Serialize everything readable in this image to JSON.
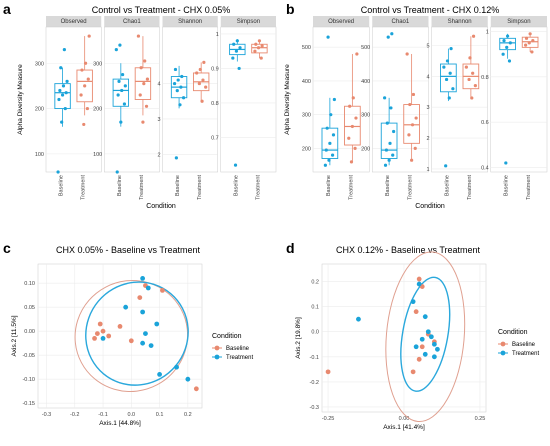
{
  "colors": {
    "baseline": "#e8896f",
    "treatment": "#1aa3d9",
    "baseline_ellipse": "#e0a090",
    "treatment_ellipse": "#2aa8dc",
    "strip_bg": "#d9d9d9",
    "grid": "#ececec"
  },
  "chart_data": [
    {
      "panel": "a",
      "type": "box",
      "title": "Control vs Treatment - CHX 0.05%",
      "xlabel": "Condition",
      "ylabel": "Alpha Diversity Measure",
      "categories": [
        "Baseline",
        "Treatment"
      ],
      "facets": [
        {
          "name": "Observed",
          "ylim": [
            60,
            380
          ],
          "ticks": [
            100,
            200,
            300
          ],
          "baseline": {
            "q1": 200,
            "median": 235,
            "q3": 255,
            "min": 160,
            "max": 290,
            "points": [
              60,
              170,
              200,
              220,
              230,
              235,
              240,
              250,
              260,
              290,
              330
            ]
          },
          "treatment": {
            "q1": 215,
            "median": 260,
            "q3": 285,
            "min": 185,
            "max": 360,
            "points": [
              165,
              200,
              230,
              250,
              265,
              285,
              300,
              360
            ]
          }
        },
        {
          "name": "Chao1",
          "ylim": [
            60,
            380
          ],
          "ticks": [
            100,
            200,
            300
          ],
          "baseline": {
            "q1": 205,
            "median": 240,
            "q3": 265,
            "min": 160,
            "max": 300,
            "points": [
              60,
              170,
              210,
              230,
              240,
              250,
              260,
              275,
              330,
              340
            ]
          },
          "treatment": {
            "q1": 220,
            "median": 260,
            "q3": 290,
            "min": 185,
            "max": 360,
            "points": [
              170,
              205,
              230,
              255,
              265,
              290,
              305,
              360
            ]
          }
        },
        {
          "name": "Shannon",
          "ylim": [
            1.5,
            5.6
          ],
          "ticks": [
            2,
            3,
            4
          ],
          "baseline": {
            "q1": 3.6,
            "median": 3.9,
            "q3": 4.2,
            "min": 3.3,
            "max": 4.5,
            "points": [
              1.9,
              3.4,
              3.6,
              3.8,
              3.9,
              4.0,
              4.1,
              4.2,
              4.4
            ]
          },
          "treatment": {
            "q1": 3.8,
            "median": 4.05,
            "q3": 4.3,
            "min": 3.5,
            "max": 4.6,
            "points": [
              3.5,
              3.9,
              4.0,
              4.1,
              4.3,
              4.4,
              4.6
            ]
          }
        },
        {
          "name": "Simpson",
          "ylim": [
            0.6,
            1.02
          ],
          "ticks": [
            0.7,
            0.8,
            0.9,
            1.0
          ],
          "baseline": {
            "q1": 0.94,
            "median": 0.955,
            "q3": 0.97,
            "min": 0.92,
            "max": 0.985,
            "points": [
              0.62,
              0.9,
              0.93,
              0.95,
              0.96,
              0.97,
              0.98
            ]
          },
          "treatment": {
            "q1": 0.945,
            "median": 0.96,
            "q3": 0.97,
            "min": 0.93,
            "max": 0.98,
            "points": [
              0.93,
              0.95,
              0.96,
              0.965,
              0.97,
              0.98
            ]
          }
        }
      ]
    },
    {
      "panel": "b",
      "type": "box",
      "title": "Control vs Treatment - CHX 0.12%",
      "xlabel": "Condition",
      "ylabel": "Alpha Diversity Measure",
      "categories": [
        "Baseline",
        "Treatment"
      ],
      "facets": [
        {
          "name": "Observed",
          "ylim": [
            130,
            560
          ],
          "ticks": [
            200,
            300,
            400,
            500
          ],
          "baseline": {
            "q1": 170,
            "median": 195,
            "q3": 260,
            "min": 150,
            "max": 350,
            "points": [
              150,
              165,
              180,
              195,
              215,
              240,
              260,
              300,
              345,
              530
            ]
          },
          "treatment": {
            "q1": 210,
            "median": 265,
            "q3": 325,
            "min": 160,
            "max": 480,
            "points": [
              160,
              200,
              230,
              265,
              290,
              325,
              350,
              480
            ]
          }
        },
        {
          "name": "Chao1",
          "ylim": [
            130,
            560
          ],
          "ticks": [
            200,
            300,
            400,
            500
          ],
          "baseline": {
            "q1": 170,
            "median": 195,
            "q3": 275,
            "min": 150,
            "max": 350,
            "points": [
              150,
              165,
              180,
              195,
              215,
              250,
              275,
              320,
              350,
              530,
              540
            ]
          },
          "treatment": {
            "q1": 215,
            "median": 270,
            "q3": 330,
            "min": 165,
            "max": 480,
            "points": [
              165,
              200,
              240,
              270,
              290,
              330,
              360,
              480
            ]
          }
        },
        {
          "name": "Shannon",
          "ylim": [
            0.9,
            5.6
          ],
          "ticks": [
            1,
            2,
            3,
            4,
            5
          ],
          "baseline": {
            "q1": 3.5,
            "median": 4.0,
            "q3": 4.4,
            "min": 3.2,
            "max": 4.9,
            "points": [
              1.1,
              3.3,
              3.6,
              3.9,
              4.1,
              4.3,
              4.5,
              4.9
            ]
          },
          "treatment": {
            "q1": 3.6,
            "median": 4.0,
            "q3": 4.4,
            "min": 3.3,
            "max": 5.3,
            "points": [
              3.3,
              3.7,
              3.9,
              4.1,
              4.3,
              4.6,
              5.3
            ]
          }
        },
        {
          "name": "Simpson",
          "ylim": [
            0.38,
            1.02
          ],
          "ticks": [
            0.4,
            0.6,
            0.8,
            1.0
          ],
          "baseline": {
            "q1": 0.92,
            "median": 0.95,
            "q3": 0.97,
            "min": 0.88,
            "max": 0.99,
            "points": [
              0.42,
              0.87,
              0.9,
              0.93,
              0.95,
              0.96,
              0.98
            ]
          },
          "treatment": {
            "q1": 0.93,
            "median": 0.955,
            "q3": 0.975,
            "min": 0.91,
            "max": 0.99,
            "points": [
              0.91,
              0.94,
              0.95,
              0.96,
              0.97,
              0.99
            ]
          }
        }
      ]
    },
    {
      "panel": "c",
      "type": "scatter",
      "title": "CHX 0.05% - Baseline vs Treatment",
      "xlabel": "Axis.1  [44.8%]",
      "ylabel": "Axis.2  [11.5%]",
      "xlim": [
        -0.33,
        0.25
      ],
      "ylim": [
        -0.16,
        0.14
      ],
      "xticks": [
        -0.3,
        -0.2,
        -0.1,
        0.0,
        0.1,
        0.2
      ],
      "yticks": [
        -0.15,
        -0.1,
        -0.05,
        0.0,
        0.05,
        0.1
      ],
      "xtick_labels": [
        "-0.3",
        "-0.2",
        "-0.1",
        "0.0",
        "0.1",
        "0.2"
      ],
      "ytick_labels": [
        "-0.15",
        "-0.10",
        "-0.05",
        "0.00",
        "0.05",
        "0.10"
      ],
      "legend": {
        "title": "Condition",
        "entries": [
          "Baseline",
          "Treatment"
        ],
        "position": "right"
      },
      "series": [
        {
          "name": "Baseline",
          "points": [
            [
              -0.12,
              -0.005
            ],
            [
              -0.1,
              0.0
            ],
            [
              -0.08,
              -0.01
            ],
            [
              -0.13,
              -0.015
            ],
            [
              0.0,
              -0.02
            ],
            [
              -0.04,
              0.01
            ],
            [
              0.05,
              0.095
            ],
            [
              0.11,
              0.085
            ],
            [
              0.03,
              0.07
            ],
            [
              0.23,
              -0.12
            ],
            [
              -0.11,
              0.015
            ]
          ]
        },
        {
          "name": "Treatment",
          "points": [
            [
              0.04,
              0.11
            ],
            [
              0.06,
              0.09
            ],
            [
              -0.02,
              0.05
            ],
            [
              0.04,
              0.04
            ],
            [
              0.09,
              0.015
            ],
            [
              0.05,
              -0.005
            ],
            [
              0.04,
              -0.025
            ],
            [
              0.07,
              -0.03
            ],
            [
              -0.1,
              -0.015
            ],
            [
              0.16,
              -0.075
            ],
            [
              0.1,
              -0.09
            ],
            [
              0.2,
              -0.1
            ]
          ]
        }
      ],
      "ellipses": [
        {
          "name": "Baseline",
          "cx": 0.0,
          "cy": -0.01,
          "rx": 0.2,
          "ry": 0.115,
          "angle": -28
        },
        {
          "name": "Treatment",
          "cx": 0.02,
          "cy": -0.005,
          "rx": 0.185,
          "ry": 0.105,
          "angle": -50
        }
      ]
    },
    {
      "panel": "d",
      "type": "scatter",
      "title": "CHX 0.12% - Baseline vs Treatment",
      "xlabel": "Axis.1  [41.4%]",
      "ylabel": "Axis.2  [19.8%]",
      "xlim": [
        -0.27,
        0.27
      ],
      "ylim": [
        -0.32,
        0.27
      ],
      "xticks": [
        -0.25,
        0.0,
        0.25
      ],
      "yticks": [
        -0.3,
        -0.2,
        -0.1,
        0.0,
        0.1,
        0.2
      ],
      "xtick_labels": [
        "-0.25",
        "0.00",
        "0.25"
      ],
      "ytick_labels": [
        "-0.3",
        "-0.2",
        "-0.1",
        "0.0",
        "0.1",
        "0.2"
      ],
      "legend": {
        "title": "Condition",
        "entries": [
          "Baseline",
          "Treatment"
        ],
        "position": "right"
      },
      "series": [
        {
          "name": "Baseline",
          "points": [
            [
              -0.25,
              -0.16
            ],
            [
              0.05,
              0.21
            ],
            [
              0.06,
              0.18
            ],
            [
              0.04,
              0.08
            ],
            [
              0.06,
              -0.06
            ],
            [
              0.08,
              -0.01
            ],
            [
              0.1,
              -0.04
            ],
            [
              0.05,
              -0.11
            ],
            [
              0.03,
              -0.16
            ]
          ]
        },
        {
          "name": "Treatment",
          "points": [
            [
              -0.15,
              0.05
            ],
            [
              0.05,
              0.19
            ],
            [
              0.03,
              0.12
            ],
            [
              0.07,
              0.06
            ],
            [
              0.08,
              0.0
            ],
            [
              0.09,
              -0.02
            ],
            [
              0.1,
              -0.05
            ],
            [
              0.06,
              -0.03
            ],
            [
              0.04,
              -0.06
            ],
            [
              0.11,
              -0.07
            ],
            [
              0.07,
              -0.09
            ],
            [
              0.1,
              -0.1
            ]
          ]
        }
      ],
      "ellipses": [
        {
          "name": "Baseline",
          "cx": 0.07,
          "cy": -0.02,
          "rx": 0.28,
          "ry": 0.155,
          "angle": 95
        },
        {
          "name": "Treatment",
          "cx": 0.07,
          "cy": -0.01,
          "rx": 0.19,
          "ry": 0.09,
          "angle": 100
        }
      ]
    }
  ]
}
